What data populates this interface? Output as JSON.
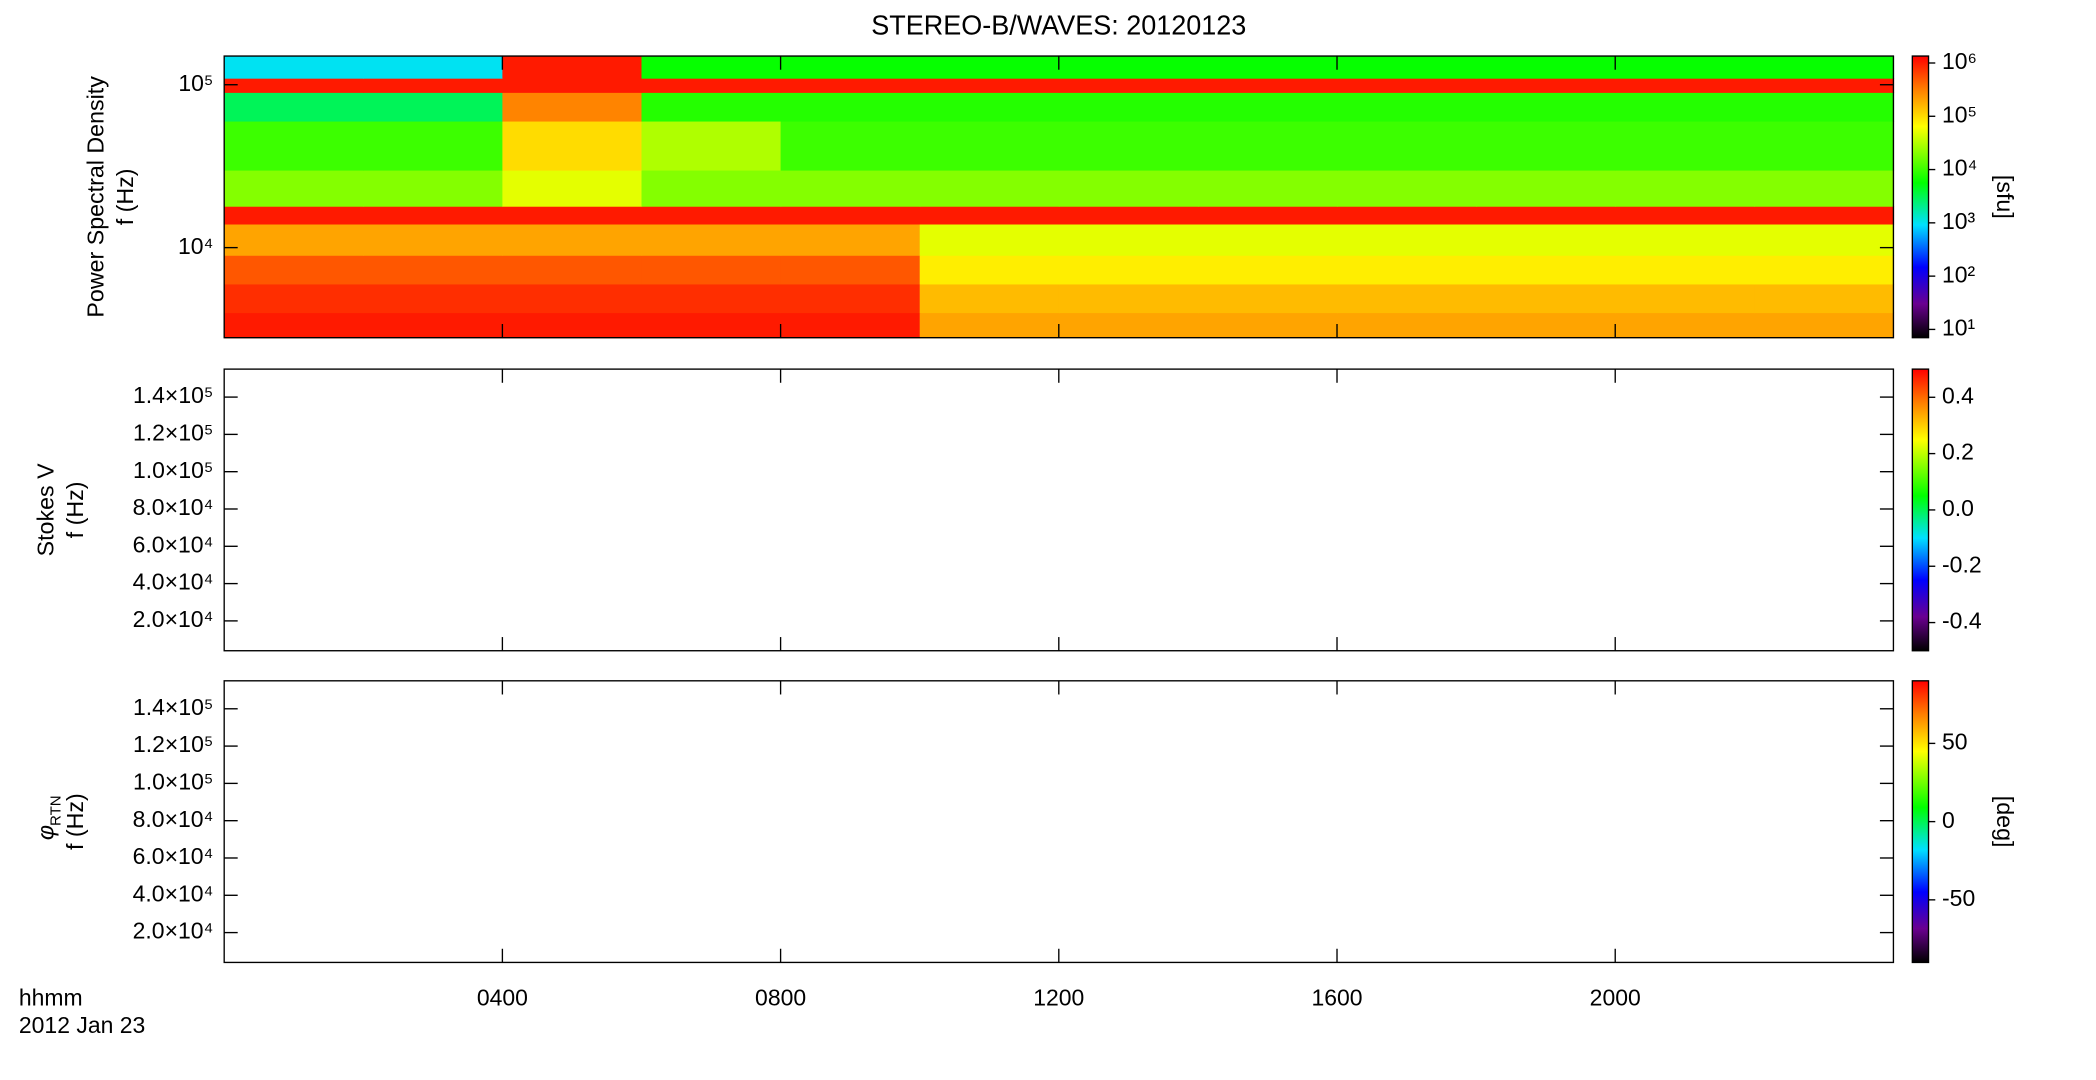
{
  "chart_data": [
    {
      "type": "heatmap",
      "title": "STEREO-B/WAVES: 20120123",
      "ylabel": [
        "Power Spectral Density",
        "f (Hz)"
      ],
      "yscale": "log",
      "ylim": [
        2800,
        150000
      ],
      "yticks": [
        {
          "value": 10000,
          "label": "10⁴"
        },
        {
          "value": 100000,
          "label": "10⁵"
        }
      ],
      "xlim": [
        0,
        24
      ],
      "xbins": [
        0,
        2,
        4,
        6,
        8,
        10,
        12,
        14,
        16,
        18,
        20,
        22,
        24
      ],
      "ybins": [
        2800,
        4000,
        6000,
        9000,
        14000,
        18000,
        30000,
        60000,
        90000,
        110000,
        150000
      ],
      "z": [
        [
          1000000,
          1000000,
          1000000,
          1000000,
          1000000,
          200000,
          200000,
          200000,
          200000,
          200000,
          200000,
          200000
        ],
        [
          800000,
          800000,
          800000,
          800000,
          800000,
          150000,
          150000,
          150000,
          150000,
          150000,
          150000,
          150000
        ],
        [
          500000,
          500000,
          500000,
          500000,
          500000,
          80000,
          80000,
          80000,
          80000,
          80000,
          80000,
          80000
        ],
        [
          200000,
          200000,
          200000,
          200000,
          200000,
          50000,
          50000,
          50000,
          50000,
          50000,
          50000,
          50000
        ],
        [
          1000000,
          1000000,
          1000000,
          1000000,
          1000000,
          1000000,
          1000000,
          1000000,
          1000000,
          1000000,
          1000000,
          1000000
        ],
        [
          20000,
          20000,
          50000,
          20000,
          20000,
          20000,
          20000,
          20000,
          20000,
          20000,
          20000,
          20000
        ],
        [
          10000,
          10000,
          100000,
          30000,
          10000,
          10000,
          10000,
          10000,
          10000,
          10000,
          10000,
          10000
        ],
        [
          3000,
          3000,
          300000,
          8000,
          8000,
          8000,
          8000,
          8000,
          8000,
          8000,
          8000,
          8000
        ],
        [
          1000000,
          1000000,
          1000000,
          1000000,
          1000000,
          1000000,
          1000000,
          1000000,
          1000000,
          1000000,
          1000000,
          1000000
        ],
        [
          1000,
          1000,
          1000000,
          6000,
          6000,
          6000,
          6000,
          6000,
          6000,
          6000,
          6000,
          6000
        ]
      ],
      "zscale": "log",
      "zlim": [
        7,
        1350000
      ],
      "zticks": [
        {
          "value": 10,
          "label": "10¹"
        },
        {
          "value": 100,
          "label": "10²"
        },
        {
          "value": 1000,
          "label": "10³"
        },
        {
          "value": 10000,
          "label": "10⁴"
        },
        {
          "value": 100000,
          "label": "10⁵"
        },
        {
          "value": 1000000,
          "label": "10⁶"
        }
      ],
      "colorbar_label": "[sfu]"
    },
    {
      "type": "heatmap",
      "ylabel": [
        "Stokes V",
        "f (Hz)"
      ],
      "yscale": "linear",
      "ylim": [
        4000,
        155000
      ],
      "yticks": [
        {
          "value": 20000,
          "label": "2.0×10⁴"
        },
        {
          "value": 40000,
          "label": "4.0×10⁴"
        },
        {
          "value": 60000,
          "label": "6.0×10⁴"
        },
        {
          "value": 80000,
          "label": "8.0×10⁴"
        },
        {
          "value": 100000,
          "label": "1.0×10⁵"
        },
        {
          "value": 120000,
          "label": "1.2×10⁵"
        },
        {
          "value": 140000,
          "label": "1.4×10⁵"
        }
      ],
      "xlim": [
        0,
        24
      ],
      "zscale": "linear",
      "zlim": [
        -0.5,
        0.5
      ],
      "zticks": [
        -0.4,
        -0.2,
        {
          "value": 0,
          "label": "0.0"
        },
        0.2,
        0.4
      ]
    },
    {
      "type": "heatmap",
      "ylabel_symbol": "φ",
      "ylabel_subscript": "RTN",
      "ylabel": [
        "f (Hz)"
      ],
      "yscale": "linear",
      "ylim": [
        4000,
        155000
      ],
      "yticks": [
        {
          "value": 20000,
          "label": "2.0×10⁴"
        },
        {
          "value": 40000,
          "label": "4.0×10⁴"
        },
        {
          "value": 60000,
          "label": "6.0×10⁴"
        },
        {
          "value": 80000,
          "label": "8.0×10⁴"
        },
        {
          "value": 100000,
          "label": "1.0×10⁵"
        },
        {
          "value": 120000,
          "label": "1.2×10⁵"
        },
        {
          "value": 140000,
          "label": "1.4×10⁵"
        }
      ],
      "xlim": [
        0,
        24
      ],
      "xticks": [
        {
          "value": 4,
          "label": "0400"
        },
        {
          "value": 8,
          "label": "0800"
        },
        {
          "value": 12,
          "label": "1200"
        },
        {
          "value": 16,
          "label": "1600"
        },
        {
          "value": 20,
          "label": "2000"
        }
      ],
      "xlabel": [
        "hhmm",
        "2012 Jan 23"
      ],
      "zscale": "linear",
      "zlim": [
        -90,
        90
      ],
      "zticks": [
        -50,
        0,
        50
      ],
      "colorbar_label": "[deg]"
    }
  ]
}
